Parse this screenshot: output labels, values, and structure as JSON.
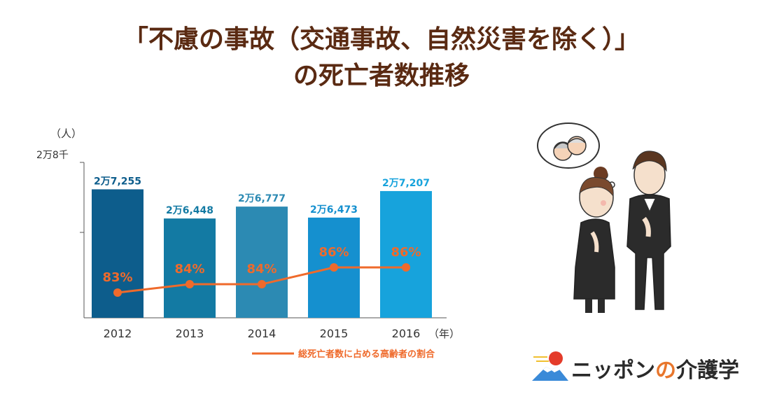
{
  "title_line1": "「不慮の事故（交通事故、自然災害を除く）」",
  "title_line2": "の死亡者数推移",
  "colors": {
    "title": "#5a2a12",
    "line": "#ef6a2b",
    "bars": [
      "#0d5d8c",
      "#137aa3",
      "#2c8ab3",
      "#1590cf",
      "#17a3dc"
    ],
    "bar_labels": [
      "#0d5d8c",
      "#137aa3",
      "#2c8ab3",
      "#1590cf",
      "#17a3dc"
    ]
  },
  "chart_data": {
    "type": "bar",
    "categories": [
      "2012",
      "2013",
      "2014",
      "2015",
      "2016"
    ],
    "bar_values": [
      27255,
      26448,
      26777,
      26473,
      27207
    ],
    "bar_value_labels": [
      "2万7,255",
      "2万6,448",
      "2万6,777",
      "2万6,473",
      "2万7,207"
    ],
    "y_unit_label": "（人）",
    "y_tick_label": "2万8千",
    "x_unit_label": "（年）",
    "line_series": {
      "name": "総死亡者数に占める高齢者の割合",
      "values": [
        83,
        84,
        84,
        86,
        86
      ],
      "value_labels": [
        "83%",
        "84%",
        "84%",
        "86%",
        "86%"
      ]
    }
  },
  "logo": {
    "text_prefix": "ニッポン",
    "text_accent": "の",
    "text_suffix": "介護学"
  },
  "illustration": {
    "name": "mourning couple with thought bubble of elderly parents"
  }
}
